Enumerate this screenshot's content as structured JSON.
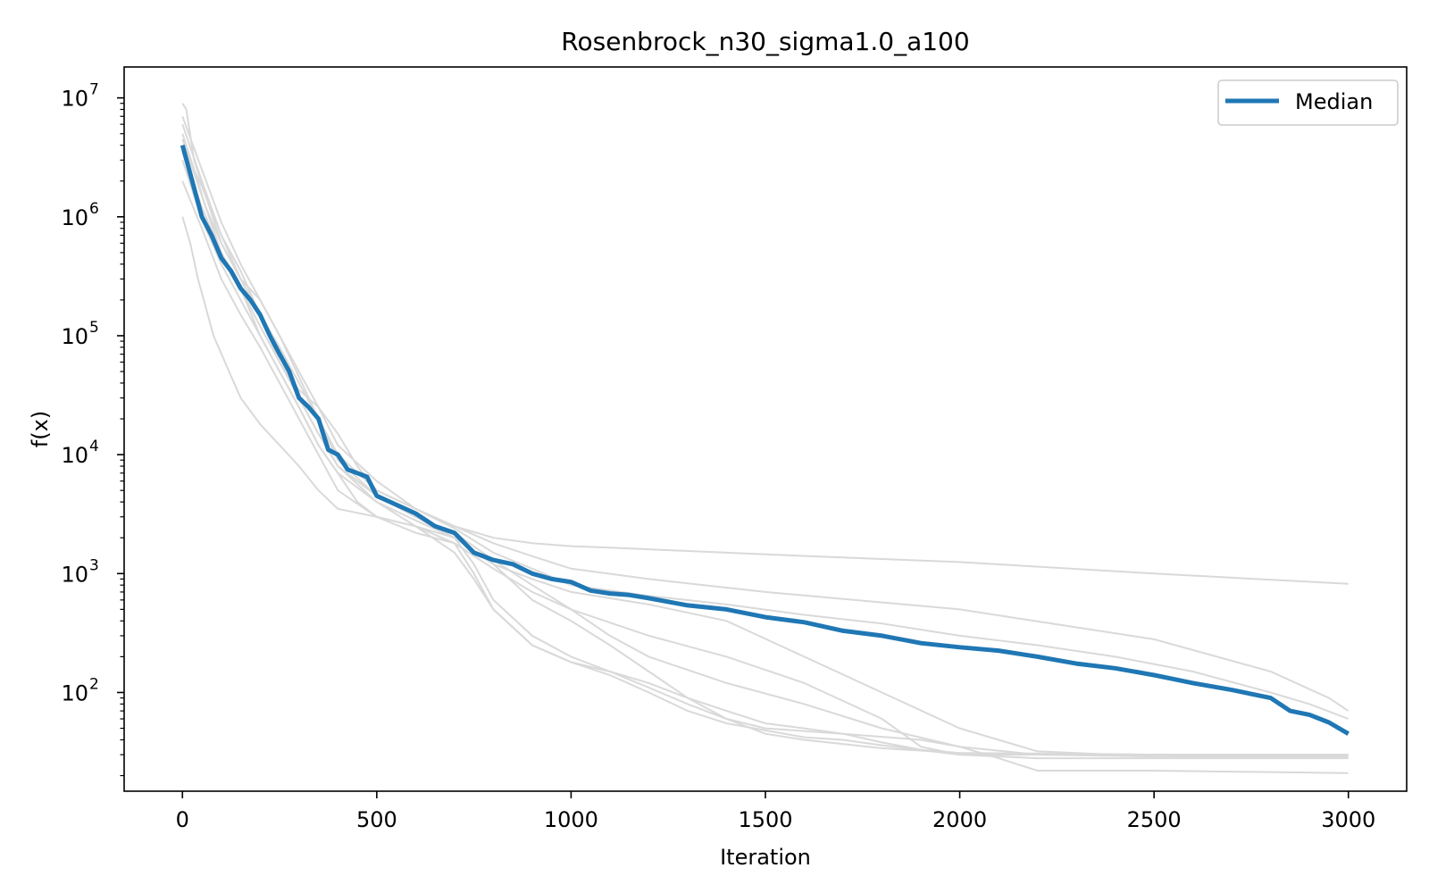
{
  "chart_data": {
    "type": "line",
    "title": "Rosenbrock_n30_sigma1.0_a100",
    "xlabel": "Iteration",
    "ylabel": "f(x)",
    "xlim": [
      -150,
      3150
    ],
    "ylim_log10": [
      1.17,
      7.26
    ],
    "yscale": "log",
    "xticks": [
      0,
      500,
      1000,
      1500,
      2000,
      2500,
      3000
    ],
    "xtick_labels": [
      "0",
      "500",
      "1000",
      "1500",
      "2000",
      "2500",
      "3000"
    ],
    "yticks": [
      {
        "value": 100,
        "base": "10",
        "exp": "2"
      },
      {
        "value": 1000,
        "base": "10",
        "exp": "3"
      },
      {
        "value": 10000,
        "base": "10",
        "exp": "4"
      },
      {
        "value": 100000,
        "base": "10",
        "exp": "5"
      },
      {
        "value": 1000000,
        "base": "10",
        "exp": "6"
      },
      {
        "value": 10000000,
        "base": "10",
        "exp": "7"
      }
    ],
    "grid": false,
    "legend": {
      "position": "top-right",
      "entries": [
        "Median"
      ]
    },
    "colors": {
      "median": "#1f77b4",
      "runs": "#d9d9d9"
    },
    "series": [
      {
        "name": "Median",
        "x": [
          0,
          25,
          50,
          75,
          100,
          125,
          150,
          175,
          200,
          225,
          250,
          275,
          300,
          325,
          350,
          375,
          400,
          425,
          450,
          475,
          500,
          550,
          600,
          650,
          700,
          750,
          800,
          850,
          900,
          950,
          1000,
          1050,
          1100,
          1150,
          1200,
          1300,
          1400,
          1500,
          1600,
          1700,
          1800,
          1900,
          2000,
          2100,
          2200,
          2300,
          2400,
          2500,
          2600,
          2700,
          2800,
          2850,
          2900,
          2950,
          3000
        ],
        "y": [
          4000000,
          2000000,
          1000000,
          700000,
          450000,
          350000,
          250000,
          200000,
          150000,
          100000,
          70000,
          50000,
          30000,
          25000,
          20000,
          11000,
          10000,
          7500,
          7000,
          6500,
          4500,
          3800,
          3200,
          2500,
          2200,
          1500,
          1300,
          1200,
          1000,
          900,
          850,
          720,
          680,
          660,
          620,
          540,
          500,
          430,
          390,
          330,
          300,
          260,
          240,
          225,
          200,
          175,
          160,
          140,
          120,
          105,
          90,
          70,
          65,
          56,
          45
        ]
      },
      {
        "x": [
          0,
          10,
          30,
          60,
          100,
          150,
          200,
          250,
          300,
          350,
          400,
          500,
          600,
          700,
          800,
          900,
          1000,
          1100,
          1200,
          1500,
          2000,
          2500,
          3000
        ],
        "y": [
          9000000,
          8000000,
          3000000,
          1500000,
          600000,
          300000,
          150000,
          60000,
          35000,
          25000,
          12000,
          6000,
          3500,
          2500,
          2000,
          1800,
          1700,
          1650,
          1600,
          1450,
          1250,
          1000,
          820
        ]
      },
      {
        "x": [
          0,
          30,
          60,
          100,
          150,
          200,
          250,
          300,
          350,
          400,
          450,
          500,
          600,
          700,
          800,
          900,
          1000,
          1200,
          1500,
          2000,
          2500,
          2800,
          2950,
          3000
        ],
        "y": [
          5000000,
          2500000,
          1200000,
          600000,
          300000,
          200000,
          100000,
          50000,
          25000,
          15000,
          8000,
          5000,
          3500,
          2500,
          1800,
          1400,
          1100,
          900,
          700,
          500,
          280,
          150,
          90,
          70
        ]
      },
      {
        "x": [
          0,
          30,
          60,
          100,
          150,
          200,
          250,
          300,
          350,
          400,
          450,
          500,
          600,
          700,
          800,
          900,
          1000,
          1200,
          1400,
          1600,
          1800,
          1900,
          2000,
          2500,
          3000
        ],
        "y": [
          3000000,
          1500000,
          800000,
          400000,
          200000,
          100000,
          50000,
          25000,
          12000,
          7000,
          4000,
          3000,
          2200,
          1800,
          1100,
          700,
          500,
          300,
          200,
          120,
          60,
          35,
          30,
          30,
          30
        ]
      },
      {
        "x": [
          0,
          20,
          40,
          80,
          120,
          150,
          200,
          250,
          300,
          350,
          400,
          500,
          600,
          700,
          750,
          800,
          900,
          1000,
          1100,
          1200,
          1300,
          1400,
          1500,
          1600,
          1700,
          1800,
          1900,
          2000,
          2500,
          3000
        ],
        "y": [
          1000000,
          600000,
          300000,
          100000,
          50000,
          30000,
          18000,
          12000,
          8000,
          5000,
          3500,
          3000,
          2500,
          1800,
          1000,
          500,
          250,
          180,
          150,
          120,
          90,
          70,
          55,
          50,
          45,
          38,
          33,
          31,
          30,
          29
        ]
      },
      {
        "x": [
          0,
          50,
          100,
          150,
          200,
          250,
          300,
          350,
          400,
          500,
          600,
          700,
          750,
          800,
          900,
          1000,
          1100,
          1200,
          1300,
          1400,
          1500,
          1600,
          1700,
          1800,
          2000,
          2200,
          2500,
          3000
        ],
        "y": [
          2000000,
          800000,
          300000,
          150000,
          80000,
          40000,
          20000,
          10000,
          5000,
          3000,
          2500,
          1500,
          900,
          500,
          250,
          180,
          140,
          100,
          70,
          55,
          48,
          42,
          40,
          36,
          30,
          28,
          28,
          28
        ]
      },
      {
        "x": [
          0,
          50,
          100,
          150,
          200,
          250,
          300,
          350,
          400,
          500,
          600,
          700,
          800,
          900,
          1000,
          1200,
          1400,
          1600,
          1800,
          2000,
          2200,
          2400,
          2600,
          2800,
          2900,
          3000
        ],
        "y": [
          3500000,
          1200000,
          500000,
          250000,
          120000,
          60000,
          30000,
          15000,
          8000,
          4500,
          3000,
          2000,
          1200,
          900,
          700,
          550,
          400,
          200,
          100,
          50,
          32,
          30,
          30,
          30,
          30,
          30
        ]
      },
      {
        "x": [
          0,
          50,
          100,
          150,
          200,
          250,
          300,
          350,
          400,
          500,
          600,
          700,
          750,
          800,
          900,
          1000,
          1100,
          1200,
          1300,
          1400,
          1500,
          1700,
          1900,
          2000,
          2100,
          2200,
          2500,
          3000
        ],
        "y": [
          6000000,
          2000000,
          700000,
          300000,
          150000,
          60000,
          30000,
          15000,
          8000,
          4000,
          2500,
          2000,
          1200,
          600,
          300,
          200,
          150,
          110,
          80,
          60,
          50,
          45,
          40,
          35,
          28,
          22,
          22,
          21
        ]
      },
      {
        "x": [
          0,
          50,
          100,
          150,
          200,
          250,
          300,
          350,
          400,
          500,
          600,
          700,
          800,
          900,
          1000,
          1100,
          1200,
          1300,
          1400,
          1500,
          1600,
          1800,
          2000,
          2500,
          3000
        ],
        "y": [
          4500000,
          1500000,
          500000,
          250000,
          100000,
          50000,
          25000,
          12000,
          7000,
          4000,
          2800,
          2000,
          1200,
          600,
          400,
          250,
          150,
          90,
          60,
          45,
          40,
          34,
          31,
          30,
          29
        ]
      },
      {
        "x": [
          0,
          50,
          100,
          150,
          200,
          250,
          300,
          350,
          400,
          500,
          600,
          700,
          800,
          900,
          1000,
          1200,
          1400,
          1600,
          1800,
          2000,
          2200,
          2400,
          2600,
          2800,
          2900,
          3000
        ],
        "y": [
          4000000,
          1800000,
          700000,
          350000,
          150000,
          80000,
          40000,
          20000,
          10000,
          5000,
          3500,
          2400,
          1500,
          1100,
          800,
          650,
          550,
          450,
          380,
          300,
          250,
          200,
          150,
          100,
          80,
          60
        ]
      },
      {
        "x": [
          0,
          50,
          100,
          150,
          200,
          250,
          300,
          350,
          400,
          500,
          600,
          700,
          800,
          900,
          1000,
          1100,
          1200,
          1400,
          1600,
          1800,
          2000,
          2200,
          2500,
          3000
        ],
        "y": [
          7000000,
          2500000,
          900000,
          400000,
          200000,
          100000,
          45000,
          20000,
          9000,
          4500,
          3000,
          2200,
          1300,
          800,
          500,
          300,
          200,
          120,
          80,
          50,
          35,
          30,
          29,
          29
        ]
      }
    ]
  }
}
